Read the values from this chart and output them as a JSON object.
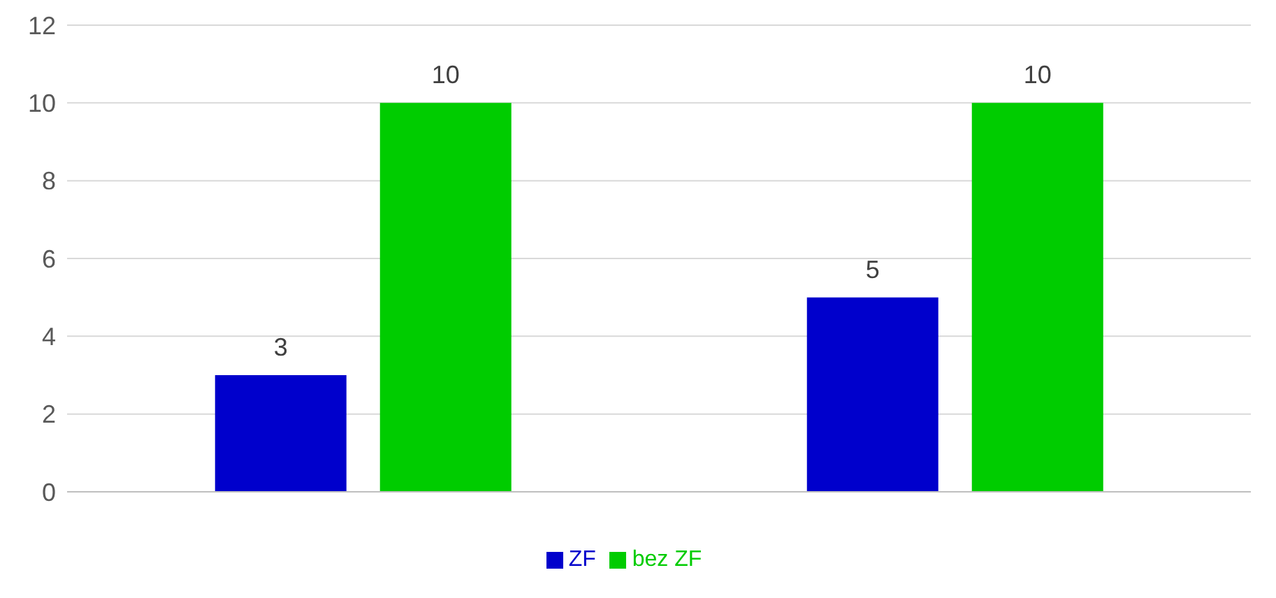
{
  "chart_data": {
    "type": "bar",
    "categories": [
      null,
      null
    ],
    "series": [
      {
        "name": "ZF",
        "color": "#0000cc",
        "values": [
          3,
          5
        ]
      },
      {
        "name": "bez ZF",
        "color": "#00cc00",
        "values": [
          10,
          10
        ]
      }
    ],
    "ylim": [
      0,
      12
    ],
    "yticks": [
      0,
      2,
      4,
      6,
      8,
      10,
      12
    ],
    "grid": "y",
    "legend": "bottom",
    "data_labels": true
  }
}
